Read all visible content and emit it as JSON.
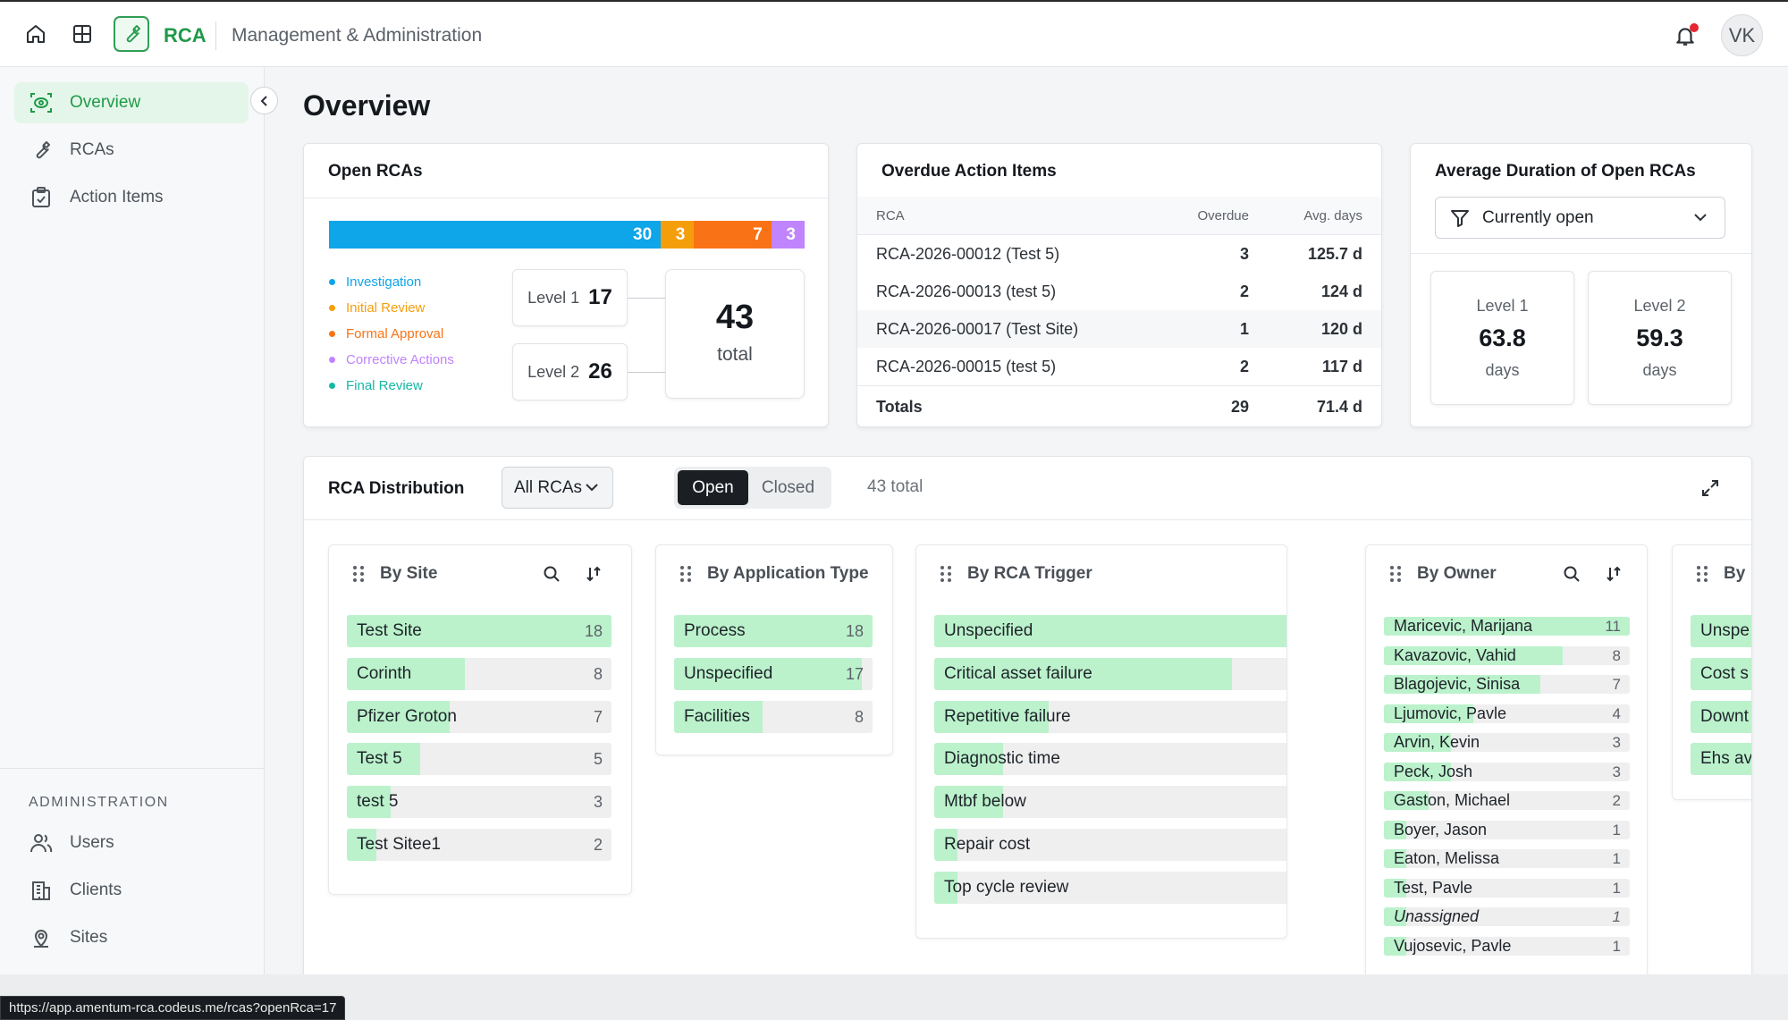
{
  "header": {
    "brand": "RCA",
    "section": "Management & Administration",
    "avatar": "VK"
  },
  "sidebar": {
    "items": [
      {
        "label": "Overview"
      },
      {
        "label": "RCAs"
      },
      {
        "label": "Action Items"
      }
    ],
    "admin_title": "ADMINISTRATION",
    "admin_items": [
      {
        "label": "Users"
      },
      {
        "label": "Clients"
      },
      {
        "label": "Sites"
      }
    ]
  },
  "page": {
    "title": "Overview"
  },
  "open_rcas": {
    "title": "Open RCAs",
    "segments": [
      {
        "label": "Investigation",
        "value": "30",
        "color": "#0ea5e9"
      },
      {
        "label": "Initial Review",
        "value": "3",
        "color": "#f59e0b"
      },
      {
        "label": "Formal Approval",
        "value": "7",
        "color": "#f97316"
      },
      {
        "label": "Corrective Actions",
        "value": "3",
        "color": "#c084fc"
      },
      {
        "label": "Final Review",
        "value": "",
        "color": "#14b8a6"
      }
    ],
    "level1": {
      "label": "Level 1",
      "value": "17"
    },
    "level2": {
      "label": "Level 2",
      "value": "26"
    },
    "total": {
      "value": "43",
      "label": "total"
    }
  },
  "overdue": {
    "title": "Overdue Action Items",
    "headers": [
      "RCA",
      "Overdue",
      "Avg. days"
    ],
    "rows": [
      [
        "RCA-2026-00012 (Test 5)",
        "3",
        "125.7 d"
      ],
      [
        "RCA-2026-00013 (test 5)",
        "2",
        "124 d"
      ],
      [
        "RCA-2026-00017 (Test Site)",
        "1",
        "120 d"
      ],
      [
        "RCA-2026-00015 (test 5)",
        "2",
        "117 d"
      ]
    ],
    "totals": [
      "Totals",
      "29",
      "71.4 d"
    ]
  },
  "avg_duration": {
    "title": "Average Duration of Open RCAs",
    "filter": "Currently open",
    "level1": {
      "label": "Level 1",
      "value": "63.8",
      "unit": "days"
    },
    "level2": {
      "label": "Level 2",
      "value": "59.3",
      "unit": "days"
    }
  },
  "distribution": {
    "title": "RCA Distribution",
    "select": "All RCAs",
    "toggle": [
      "Open",
      "Closed"
    ],
    "count": "43 total",
    "panels": {
      "site": {
        "title": "By Site",
        "items": [
          {
            "label": "Test Site",
            "value": "18"
          },
          {
            "label": "Corinth",
            "value": "8"
          },
          {
            "label": "Pfizer Groton",
            "value": "7"
          },
          {
            "label": "Test 5",
            "value": "5"
          },
          {
            "label": "test 5",
            "value": "3"
          },
          {
            "label": "Test Sitee1",
            "value": "2"
          }
        ]
      },
      "apptype": {
        "title": "By Application Type",
        "items": [
          {
            "label": "Process",
            "value": "18"
          },
          {
            "label": "Unspecified",
            "value": "17"
          },
          {
            "label": "Facilities",
            "value": "8"
          }
        ]
      },
      "trigger": {
        "title": "By RCA Trigger",
        "items": [
          {
            "label": "Unspecified",
            "value": "17"
          },
          {
            "label": "Critical asset failure",
            "value": "13"
          },
          {
            "label": "Repetitive failure",
            "value": "5"
          },
          {
            "label": "Diagnostic time",
            "value": "3"
          },
          {
            "label": "Mtbf below",
            "value": "3"
          },
          {
            "label": "Repair cost",
            "value": "1"
          },
          {
            "label": "Top cycle review",
            "value": "1"
          }
        ]
      },
      "owner": {
        "title": "By Owner",
        "items": [
          {
            "label": "Maricevic, Marijana",
            "value": "11"
          },
          {
            "label": "Kavazovic, Vahid",
            "value": "8"
          },
          {
            "label": "Blagojevic, Sinisa",
            "value": "7"
          },
          {
            "label": "Ljumovic, Pavle",
            "value": "4"
          },
          {
            "label": "Arvin, Kevin",
            "value": "3"
          },
          {
            "label": "Peck, Josh",
            "value": "3"
          },
          {
            "label": "Gaston, Michael",
            "value": "2"
          },
          {
            "label": "Boyer, Jason",
            "value": "1"
          },
          {
            "label": "Eaton, Melissa",
            "value": "1"
          },
          {
            "label": "Test, Pavle",
            "value": "1"
          },
          {
            "label": "Unassigned",
            "value": "1"
          },
          {
            "label": "Vujosevic, Pavle",
            "value": "1"
          }
        ]
      },
      "partial": {
        "title": "By",
        "items": [
          {
            "label": "Unspe"
          },
          {
            "label": "Cost s"
          },
          {
            "label": "Downt"
          },
          {
            "label": "Ehs av"
          }
        ]
      }
    }
  },
  "status_url": "https://app.amentum-rca.codeus.me/rcas?openRca=17"
}
